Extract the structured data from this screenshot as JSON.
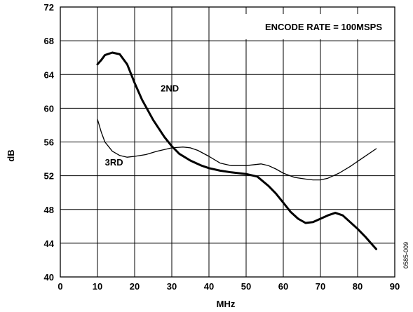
{
  "chart_data": {
    "type": "line",
    "title": "",
    "xlabel": "MHz",
    "ylabel": "dB",
    "xlim": [
      0,
      90
    ],
    "ylim": [
      40,
      72
    ],
    "x_ticks": [
      0,
      10,
      20,
      30,
      40,
      50,
      60,
      70,
      80,
      90
    ],
    "y_ticks": [
      40,
      44,
      48,
      52,
      56,
      60,
      64,
      68,
      72
    ],
    "grid": true,
    "annotations": [
      {
        "text": "ENCODE RATE = 100MSPS"
      },
      {
        "text": "0585-009"
      }
    ],
    "series": [
      {
        "name": "2ND",
        "stroke": "thick",
        "points": [
          [
            10,
            65.2
          ],
          [
            11,
            65.7
          ],
          [
            12,
            66.3
          ],
          [
            14,
            66.6
          ],
          [
            16,
            66.4
          ],
          [
            18,
            65.2
          ],
          [
            20,
            63.0
          ],
          [
            22,
            61.0
          ],
          [
            25,
            58.6
          ],
          [
            28,
            56.6
          ],
          [
            30,
            55.5
          ],
          [
            32,
            54.6
          ],
          [
            35,
            53.8
          ],
          [
            38,
            53.2
          ],
          [
            40,
            52.9
          ],
          [
            43,
            52.6
          ],
          [
            46,
            52.4
          ],
          [
            50,
            52.2
          ],
          [
            53,
            51.9
          ],
          [
            56,
            50.8
          ],
          [
            58,
            49.9
          ],
          [
            60,
            48.8
          ],
          [
            62,
            47.7
          ],
          [
            64,
            46.9
          ],
          [
            66,
            46.4
          ],
          [
            68,
            46.5
          ],
          [
            70,
            46.9
          ],
          [
            72,
            47.3
          ],
          [
            74,
            47.6
          ],
          [
            76,
            47.3
          ],
          [
            78,
            46.5
          ],
          [
            80,
            45.7
          ],
          [
            82,
            44.8
          ],
          [
            85,
            43.3
          ]
        ]
      },
      {
        "name": "3RD",
        "stroke": "thin",
        "points": [
          [
            10,
            58.7
          ],
          [
            11,
            57.2
          ],
          [
            12,
            56.0
          ],
          [
            14,
            54.9
          ],
          [
            16,
            54.4
          ],
          [
            18,
            54.2
          ],
          [
            20,
            54.3
          ],
          [
            23,
            54.5
          ],
          [
            26,
            54.9
          ],
          [
            30,
            55.3
          ],
          [
            33,
            55.4
          ],
          [
            35,
            55.3
          ],
          [
            37,
            55.0
          ],
          [
            40,
            54.3
          ],
          [
            43,
            53.5
          ],
          [
            46,
            53.2
          ],
          [
            50,
            53.2
          ],
          [
            54,
            53.4
          ],
          [
            56,
            53.2
          ],
          [
            58,
            52.8
          ],
          [
            60,
            52.3
          ],
          [
            63,
            51.8
          ],
          [
            66,
            51.6
          ],
          [
            68,
            51.5
          ],
          [
            70,
            51.5
          ],
          [
            72,
            51.7
          ],
          [
            75,
            52.3
          ],
          [
            78,
            53.1
          ],
          [
            81,
            54.0
          ],
          [
            85,
            55.2
          ]
        ]
      }
    ],
    "series_label_positions": [
      [
        27,
        62
      ],
      [
        12,
        53.2
      ]
    ]
  }
}
